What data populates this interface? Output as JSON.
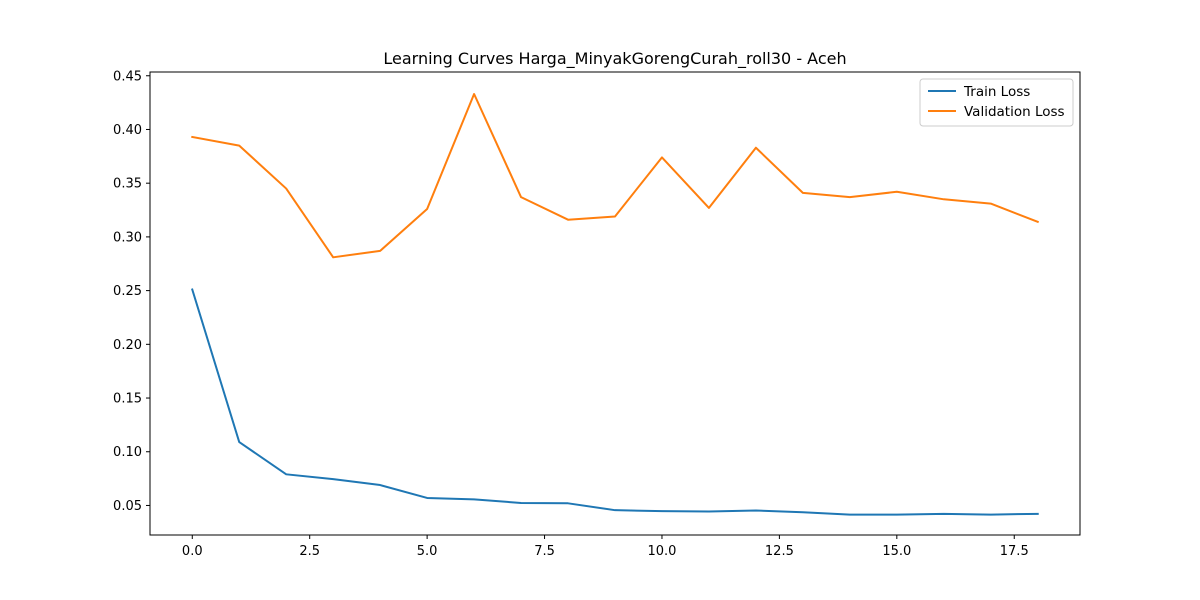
{
  "chart_data": {
    "type": "line",
    "title": "Learning Curves Harga_MinyakGorengCurah_roll30 - Aceh",
    "xlabel": "",
    "ylabel": "",
    "x": [
      0,
      1,
      2,
      3,
      4,
      5,
      6,
      7,
      8,
      9,
      10,
      11,
      12,
      13,
      14,
      15,
      16,
      17,
      18
    ],
    "xlim": [
      -0.9,
      18.9
    ],
    "ylim": [
      0.0225,
      0.4535
    ],
    "xticks": [
      0.0,
      2.5,
      5.0,
      7.5,
      10.0,
      12.5,
      15.0,
      17.5
    ],
    "xtick_labels": [
      "0.0",
      "2.5",
      "5.0",
      "7.5",
      "10.0",
      "12.5",
      "15.0",
      "17.5"
    ],
    "yticks": [
      0.05,
      0.1,
      0.15,
      0.2,
      0.25,
      0.3,
      0.35,
      0.4,
      0.45
    ],
    "ytick_labels": [
      "0.05",
      "0.10",
      "0.15",
      "0.20",
      "0.25",
      "0.30",
      "0.35",
      "0.40",
      "0.45"
    ],
    "grid": false,
    "legend_position": "top-right",
    "series": [
      {
        "name": "Train Loss",
        "color": "#1f77b4",
        "values": [
          0.251,
          0.109,
          0.079,
          0.0745,
          0.069,
          0.057,
          0.0557,
          0.0523,
          0.052,
          0.0456,
          0.0447,
          0.0444,
          0.0453,
          0.0437,
          0.0415,
          0.0415,
          0.0422,
          0.0415,
          0.0422
        ]
      },
      {
        "name": "Validation Loss",
        "color": "#ff7f0e",
        "values": [
          0.393,
          0.385,
          0.345,
          0.281,
          0.287,
          0.326,
          0.433,
          0.337,
          0.316,
          0.319,
          0.374,
          0.327,
          0.383,
          0.341,
          0.337,
          0.342,
          0.335,
          0.331,
          0.314
        ]
      }
    ]
  }
}
